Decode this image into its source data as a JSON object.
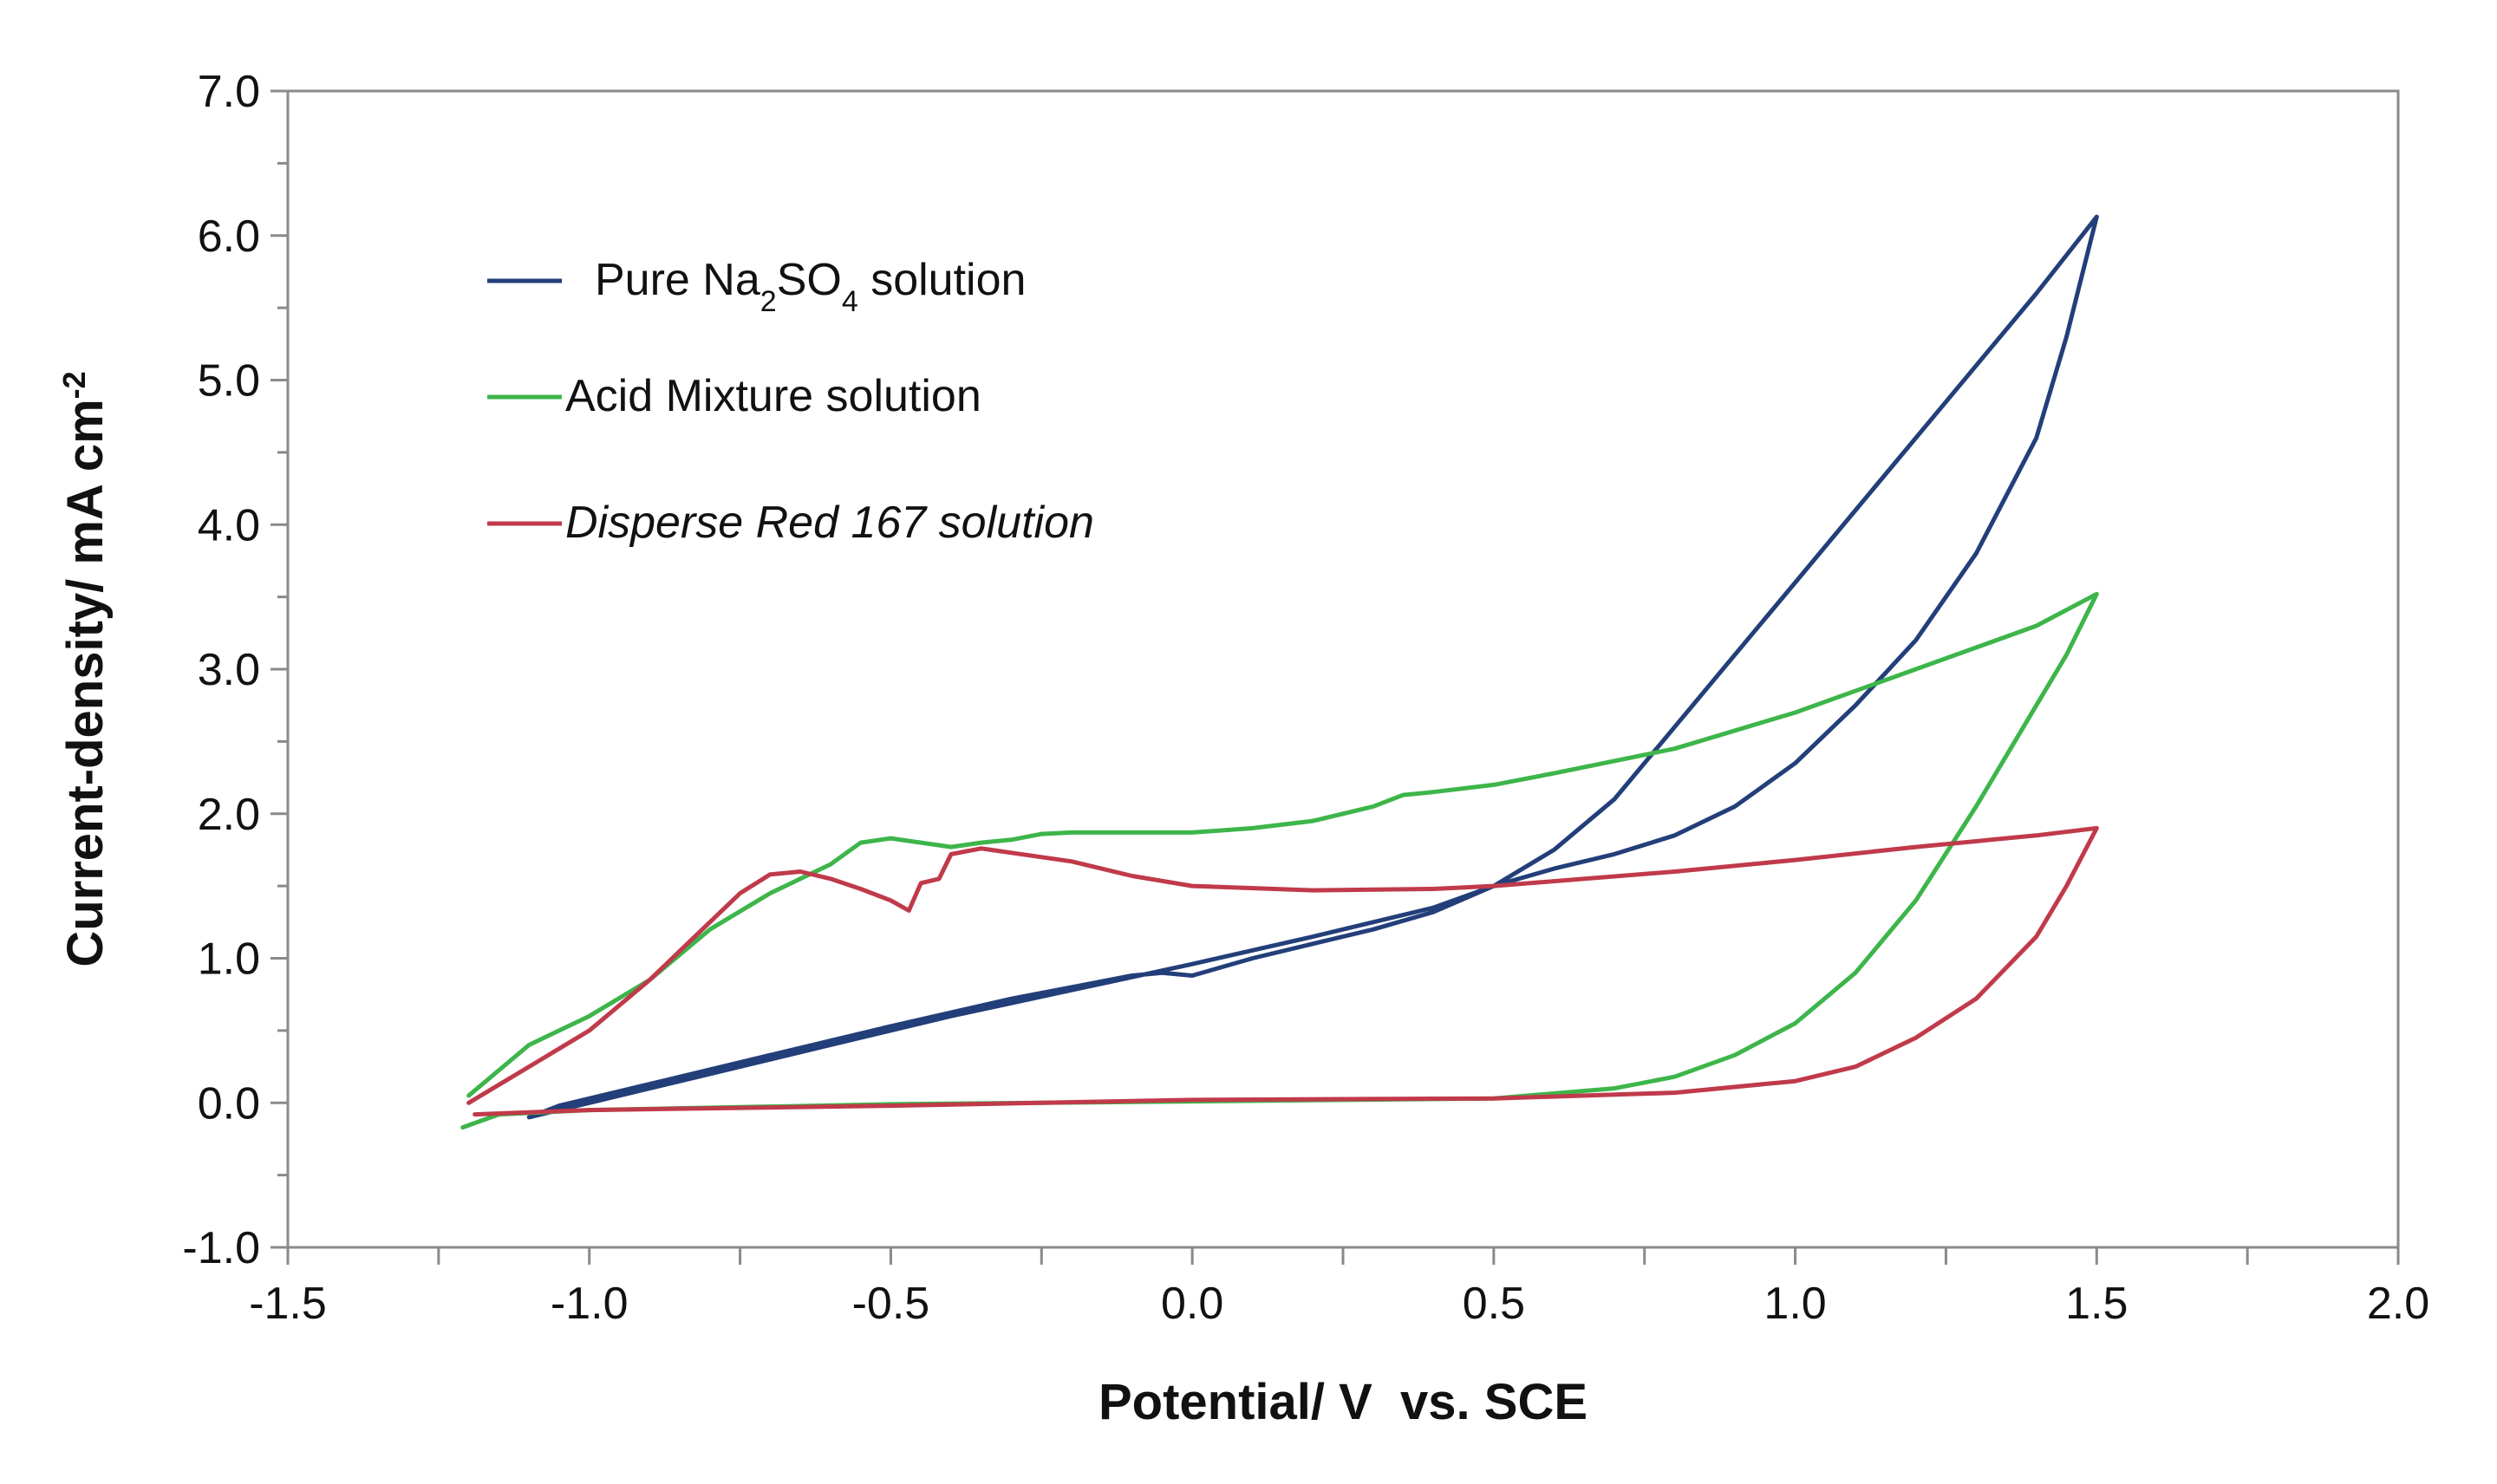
{
  "chart_data": {
    "type": "line",
    "title": "",
    "xlabel": "Potential/ V  vs. SCE",
    "ylabel": "Current-density/ mA cm",
    "ylabel_sup": "-2",
    "xlim": [
      -1.5,
      2.0
    ],
    "ylim": [
      -1.0,
      7.0
    ],
    "x_ticks": [
      -1.5,
      -1.0,
      -0.5,
      0.0,
      0.5,
      1.0,
      1.5,
      2.0
    ],
    "x_tick_labels": [
      "-1.5",
      "-1.0",
      "-0.5",
      "0.0",
      "0.5",
      "1.0",
      "1.5",
      "2.0"
    ],
    "y_ticks": [
      -1.0,
      0.0,
      1.0,
      2.0,
      3.0,
      4.0,
      5.0,
      6.0,
      7.0
    ],
    "y_tick_labels": [
      "-1.0",
      "0.0",
      "1.0",
      "2.0",
      "3.0",
      "4.0",
      "5.0",
      "6.0",
      "7.0"
    ],
    "grid": false,
    "legend_position": "top-left",
    "series": [
      {
        "name": "Pure Na2SO4 solution",
        "legend_parts": [
          {
            "t": "Pure Na",
            "s": ""
          },
          {
            "t": "2",
            "s": "sub"
          },
          {
            "t": "SO",
            "s": ""
          },
          {
            "t": "4",
            "s": "sub"
          },
          {
            "t": " solution",
            "s": ""
          }
        ],
        "italic": false,
        "color": "#233f7a",
        "points": [
          [
            -1.1,
            -0.1
          ],
          [
            -1.0,
            0.0
          ],
          [
            -0.8,
            0.2
          ],
          [
            -0.6,
            0.4
          ],
          [
            -0.4,
            0.6
          ],
          [
            -0.2,
            0.78
          ],
          [
            0.0,
            0.96
          ],
          [
            0.2,
            1.15
          ],
          [
            0.4,
            1.35
          ],
          [
            0.5,
            1.5
          ],
          [
            0.6,
            1.75
          ],
          [
            0.7,
            2.1
          ],
          [
            0.8,
            2.6
          ],
          [
            0.9,
            3.1
          ],
          [
            1.0,
            3.6
          ],
          [
            1.1,
            4.1
          ],
          [
            1.2,
            4.6
          ],
          [
            1.3,
            5.1
          ],
          [
            1.4,
            5.6
          ],
          [
            1.5,
            6.13
          ],
          [
            1.45,
            5.3
          ],
          [
            1.4,
            4.6
          ],
          [
            1.3,
            3.8
          ],
          [
            1.2,
            3.2
          ],
          [
            1.1,
            2.75
          ],
          [
            1.0,
            2.35
          ],
          [
            0.9,
            2.05
          ],
          [
            0.8,
            1.85
          ],
          [
            0.7,
            1.72
          ],
          [
            0.6,
            1.62
          ],
          [
            0.5,
            1.5
          ],
          [
            0.4,
            1.32
          ],
          [
            0.3,
            1.2
          ],
          [
            0.2,
            1.1
          ],
          [
            0.1,
            1.0
          ],
          [
            0.0,
            0.88
          ],
          [
            -0.05,
            0.9
          ],
          [
            -0.1,
            0.88
          ],
          [
            -0.3,
            0.72
          ],
          [
            -0.5,
            0.53
          ],
          [
            -0.7,
            0.33
          ],
          [
            -0.9,
            0.13
          ],
          [
            -1.05,
            -0.02
          ],
          [
            -1.1,
            -0.1
          ]
        ]
      },
      {
        "name": "Acid Mixture solution",
        "legend_parts": [
          {
            "t": "Acid Mixture solution",
            "s": ""
          }
        ],
        "italic": false,
        "color": "#3db54a",
        "points": [
          [
            -1.21,
            -0.17
          ],
          [
            -1.15,
            -0.08
          ],
          [
            -1.0,
            -0.05
          ],
          [
            -0.5,
            -0.01
          ],
          [
            0.0,
            0.01
          ],
          [
            0.5,
            0.03
          ],
          [
            0.7,
            0.1
          ],
          [
            0.8,
            0.18
          ],
          [
            0.9,
            0.33
          ],
          [
            1.0,
            0.55
          ],
          [
            1.1,
            0.9
          ],
          [
            1.2,
            1.4
          ],
          [
            1.3,
            2.05
          ],
          [
            1.4,
            2.75
          ],
          [
            1.45,
            3.1
          ],
          [
            1.5,
            3.52
          ],
          [
            1.4,
            3.3
          ],
          [
            1.2,
            3.0
          ],
          [
            1.0,
            2.7
          ],
          [
            0.8,
            2.45
          ],
          [
            0.6,
            2.28
          ],
          [
            0.5,
            2.2
          ],
          [
            0.4,
            2.15
          ],
          [
            0.35,
            2.13
          ],
          [
            0.3,
            2.05
          ],
          [
            0.2,
            1.95
          ],
          [
            0.1,
            1.9
          ],
          [
            0.0,
            1.87
          ],
          [
            -0.2,
            1.87
          ],
          [
            -0.25,
            1.86
          ],
          [
            -0.3,
            1.82
          ],
          [
            -0.35,
            1.8
          ],
          [
            -0.4,
            1.77
          ],
          [
            -0.45,
            1.8
          ],
          [
            -0.5,
            1.83
          ],
          [
            -0.55,
            1.8
          ],
          [
            -0.6,
            1.65
          ],
          [
            -0.7,
            1.45
          ],
          [
            -0.8,
            1.2
          ],
          [
            -0.9,
            0.85
          ],
          [
            -1.0,
            0.6
          ],
          [
            -1.1,
            0.4
          ],
          [
            -1.2,
            0.05
          ]
        ]
      },
      {
        "name": "Disperse Red 167 solution",
        "legend_parts": [
          {
            "t": "Disperse Red 167 solution",
            "s": ""
          }
        ],
        "italic": true,
        "color": "#c03a4a",
        "points": [
          [
            -1.2,
            0.0
          ],
          [
            -1.1,
            0.25
          ],
          [
            -1.0,
            0.5
          ],
          [
            -0.9,
            0.85
          ],
          [
            -0.8,
            1.25
          ],
          [
            -0.75,
            1.45
          ],
          [
            -0.7,
            1.58
          ],
          [
            -0.65,
            1.6
          ],
          [
            -0.6,
            1.55
          ],
          [
            -0.55,
            1.48
          ],
          [
            -0.5,
            1.4
          ],
          [
            -0.47,
            1.33
          ],
          [
            -0.45,
            1.52
          ],
          [
            -0.42,
            1.55
          ],
          [
            -0.4,
            1.72
          ],
          [
            -0.35,
            1.76
          ],
          [
            -0.3,
            1.73
          ],
          [
            -0.2,
            1.67
          ],
          [
            -0.1,
            1.57
          ],
          [
            0.0,
            1.5
          ],
          [
            0.2,
            1.47
          ],
          [
            0.4,
            1.48
          ],
          [
            0.5,
            1.5
          ],
          [
            0.8,
            1.6
          ],
          [
            1.0,
            1.68
          ],
          [
            1.2,
            1.77
          ],
          [
            1.4,
            1.85
          ],
          [
            1.5,
            1.9
          ],
          [
            1.45,
            1.5
          ],
          [
            1.4,
            1.15
          ],
          [
            1.3,
            0.72
          ],
          [
            1.2,
            0.45
          ],
          [
            1.1,
            0.25
          ],
          [
            1.0,
            0.15
          ],
          [
            0.8,
            0.07
          ],
          [
            0.5,
            0.03
          ],
          [
            0.0,
            0.02
          ],
          [
            -0.5,
            -0.02
          ],
          [
            -1.0,
            -0.05
          ],
          [
            -1.19,
            -0.08
          ]
        ]
      }
    ]
  }
}
